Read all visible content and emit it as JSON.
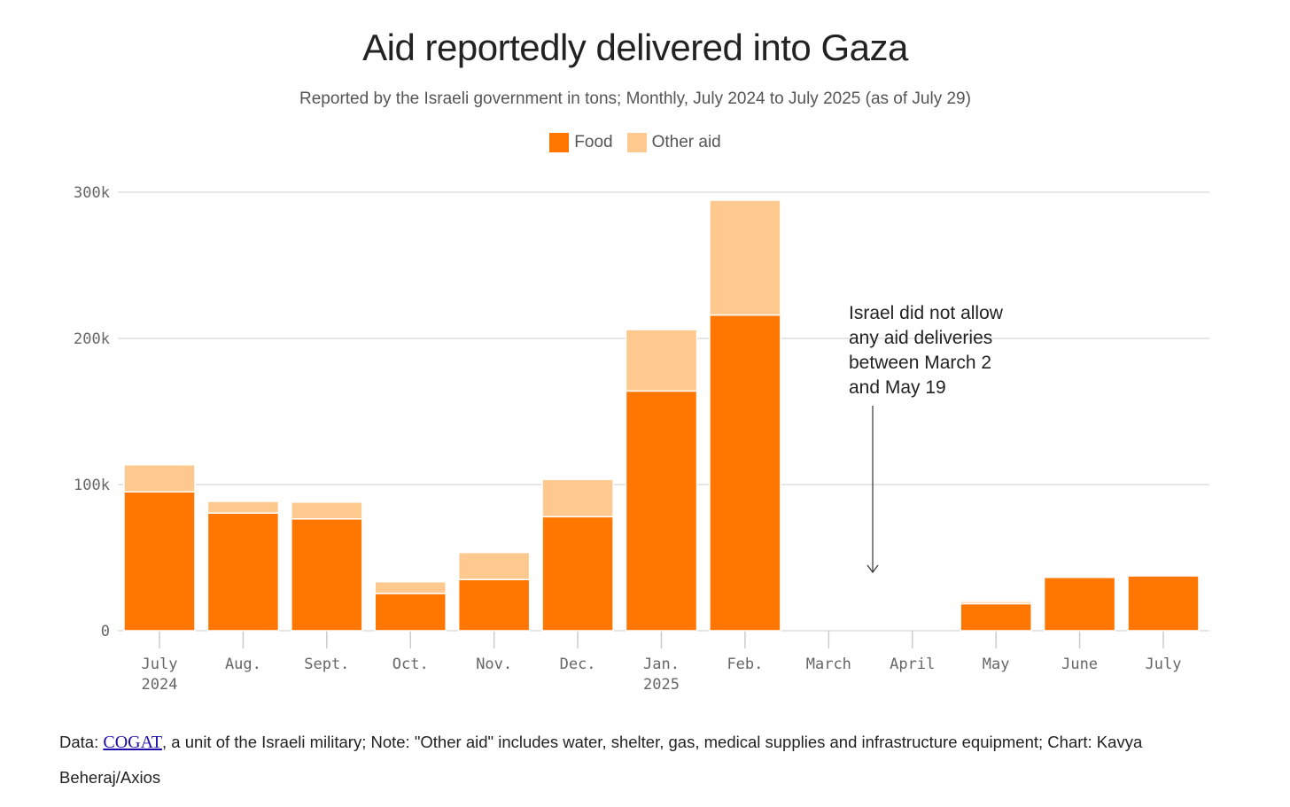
{
  "chart_data": {
    "type": "bar",
    "stacked": true,
    "title": "Aid reportedly delivered into Gaza",
    "subtitle": "Reported by the Israeli government in tons; Monthly, July 2024 to July 2025 (as of July 29)",
    "categories": [
      [
        "July",
        "2024"
      ],
      [
        "Aug.",
        ""
      ],
      [
        "Sept.",
        ""
      ],
      [
        "Oct.",
        ""
      ],
      [
        "Nov.",
        ""
      ],
      [
        "Dec.",
        ""
      ],
      [
        "Jan.",
        "2025"
      ],
      [
        "Feb.",
        ""
      ],
      [
        "March",
        ""
      ],
      [
        "April",
        ""
      ],
      [
        "May",
        ""
      ],
      [
        "June",
        ""
      ],
      [
        "July",
        ""
      ]
    ],
    "series": [
      {
        "name": "Food",
        "color": "#ff7600",
        "values": [
          95000,
          80500,
          76500,
          25500,
          35000,
          78000,
          164000,
          216000,
          0,
          0,
          18500,
          36500,
          37500
        ]
      },
      {
        "name": "Other aid",
        "color": "#fec98e",
        "values": [
          18500,
          8000,
          11500,
          8000,
          18500,
          25500,
          42000,
          78500,
          0,
          0,
          1500,
          0,
          0
        ]
      }
    ],
    "ylim": [
      0,
      300000
    ],
    "yticks": [
      0,
      100000,
      200000,
      300000
    ],
    "ytick_labels": [
      "0",
      "100k",
      "200k",
      "300k"
    ],
    "grid": true,
    "legend_position": "top-center",
    "annotation": {
      "lines": [
        "Israel did not allow",
        "any aid deliveries",
        "between March 2",
        "and May 19"
      ]
    }
  },
  "footer": {
    "prefix": "Data: ",
    "link": "COGAT",
    "rest": ", a unit of the Israeli military; Note: \"Other aid\" includes water, shelter, gas, medical supplies and infrastructure equipment; Chart: Kavya Beheraj/Axios"
  }
}
